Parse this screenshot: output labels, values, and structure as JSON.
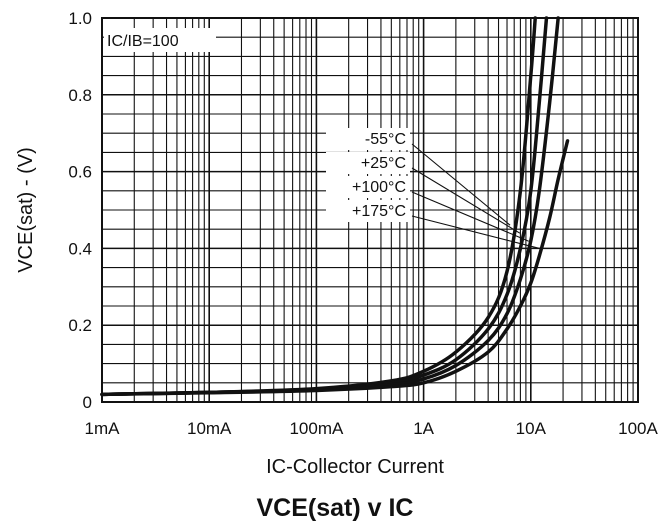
{
  "chart_data": {
    "type": "line",
    "title": "VCE(sat) v IC",
    "xlabel": "IC-Collector Current",
    "ylabel": "VCE(sat) - (V)",
    "xscale": "log",
    "xlim": [
      0.001,
      100
    ],
    "ylim": [
      0,
      1.0
    ],
    "grid": true,
    "x_tick_labels": [
      "1mA",
      "10mA",
      "100mA",
      "1A",
      "10A",
      "100A"
    ],
    "x_tick_values": [
      0.001,
      0.01,
      0.1,
      1,
      10,
      100
    ],
    "y_tick_labels": [
      "0",
      "0.2",
      "0.4",
      "0.6",
      "0.8",
      "1.0"
    ],
    "y_tick_values": [
      0,
      0.2,
      0.4,
      0.6,
      0.8,
      1.0
    ],
    "condition_label": "IC/IB=100",
    "series": [
      {
        "name": "-55°C",
        "x": [
          0.001,
          0.01,
          0.1,
          0.5,
          1,
          2,
          4,
          6,
          8,
          10,
          11
        ],
        "y": [
          0.02,
          0.025,
          0.035,
          0.055,
          0.08,
          0.13,
          0.22,
          0.34,
          0.55,
          0.85,
          1.0
        ]
      },
      {
        "name": "+25°C",
        "x": [
          0.001,
          0.01,
          0.1,
          0.5,
          1,
          2,
          4,
          6,
          8,
          10,
          12,
          14
        ],
        "y": [
          0.02,
          0.025,
          0.033,
          0.05,
          0.07,
          0.11,
          0.19,
          0.28,
          0.4,
          0.55,
          0.78,
          1.0
        ]
      },
      {
        "name": "+100°C",
        "x": [
          0.001,
          0.01,
          0.1,
          0.5,
          1,
          2,
          4,
          6,
          8,
          10,
          12,
          15,
          18
        ],
        "y": [
          0.02,
          0.025,
          0.032,
          0.045,
          0.06,
          0.095,
          0.16,
          0.23,
          0.32,
          0.42,
          0.55,
          0.78,
          1.0
        ]
      },
      {
        "name": "+175°C",
        "x": [
          0.001,
          0.01,
          0.1,
          0.5,
          1,
          2,
          4,
          6,
          8,
          10,
          12,
          15,
          18,
          22
        ],
        "y": [
          0.02,
          0.024,
          0.03,
          0.04,
          0.05,
          0.08,
          0.13,
          0.19,
          0.25,
          0.31,
          0.38,
          0.48,
          0.58,
          0.68
        ]
      }
    ]
  }
}
